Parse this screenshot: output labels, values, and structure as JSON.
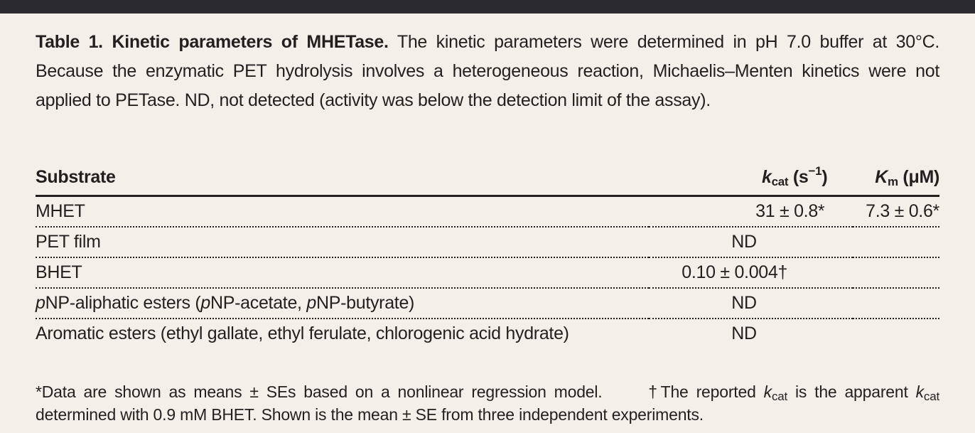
{
  "caption": {
    "title": "Table 1. Kinetic parameters of MHETase.",
    "text": "The kinetic parameters were determined in pH 7.0 buffer at 30°C. Because the enzymatic PET hydrolysis involves a heterogeneous reaction, Michaelis–Menten kinetics were not applied to PETase. ND, not detected (activity was below the detection limit of the assay)."
  },
  "table": {
    "headers": {
      "substrate": "Substrate",
      "kcat_k": "k",
      "kcat_sub": "cat",
      "kcat_unit_pre": " (s",
      "kcat_unit_sup": "−1",
      "kcat_unit_post": ")",
      "km_k": "K",
      "km_sub": "m",
      "km_unit": " (μM)"
    },
    "rows": [
      {
        "substrate": "MHET",
        "kcat": "31 ± 0.8*",
        "km": "7.3 ± 0.6*"
      },
      {
        "substrate": "PET film",
        "value": "ND"
      },
      {
        "substrate": "BHET",
        "value": "0.10 ± 0.004†"
      },
      {
        "substrate_italic": "p",
        "substrate_a": "NP-aliphatic esters (",
        "substrate_italic2": "p",
        "substrate_b": "NP-acetate, ",
        "substrate_italic3": "p",
        "substrate_c": "NP-butyrate)",
        "value": "ND"
      },
      {
        "substrate": "Aromatic esters (ethyl gallate, ethyl ferulate, chlorogenic acid hydrate)",
        "value": "ND"
      }
    ]
  },
  "footnotes": {
    "star": "*Data are shown as means ± SEs based on a nonlinear regression model.",
    "dagger_a": "†The reported ",
    "k1": "k",
    "cat1": "cat",
    "dagger_b": " is the apparent ",
    "k2": "k",
    "cat2": "cat",
    "dagger_c": " determined with 0.9 mM BHET. Shown is the mean ± SE from three independent experiments."
  }
}
